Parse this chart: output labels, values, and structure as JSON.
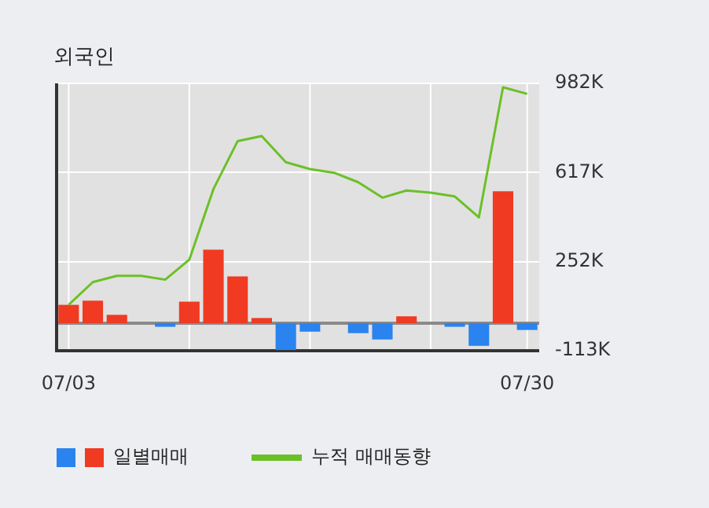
{
  "chart_data": {
    "type": "bar",
    "title": "외국인",
    "categories": [
      "07/03",
      null,
      null,
      null,
      null,
      null,
      null,
      null,
      null,
      null,
      null,
      null,
      null,
      null,
      null,
      null,
      null,
      null,
      null,
      "07/30"
    ],
    "series": [
      {
        "name": "일별매매",
        "colors": [
          "#f03a22",
          "#f03a22",
          "#f03a22",
          "#f03a22",
          "#2a83ee",
          "#f03a22",
          "#f03a22",
          "#f03a22",
          "#f03a22",
          "#2a83ee",
          "#2a83ee",
          "#f03a22",
          "#2a83ee",
          "#2a83ee",
          "#f03a22",
          "#f03a22",
          "#2a83ee",
          "#2a83ee",
          "#f03a22",
          "#2a83ee"
        ],
        "values": [
          75,
          92,
          34,
          0,
          -15,
          88,
          301,
          191,
          21,
          -110,
          -35,
          0,
          -41,
          -67,
          28,
          0,
          -15,
          -93,
          540,
          -28
        ]
      },
      {
        "name": "누적 매매동향",
        "type": "line",
        "color": "#6cc027",
        "values": [
          75,
          168,
          194,
          194,
          178,
          260,
          549,
          745,
          766,
          659,
          631,
          616,
          577,
          514,
          543,
          534,
          519,
          433,
          966,
          939
        ]
      }
    ],
    "ylim": [
      -113,
      982
    ],
    "yticks": [
      {
        "value": -113,
        "label": "-113K"
      },
      {
        "value": 252,
        "label": "252K"
      },
      {
        "value": 617,
        "label": "617K"
      },
      {
        "value": 982,
        "label": "982K"
      }
    ],
    "grid": true,
    "legend": "bottom",
    "marker": "none",
    "line_style": "solid"
  }
}
